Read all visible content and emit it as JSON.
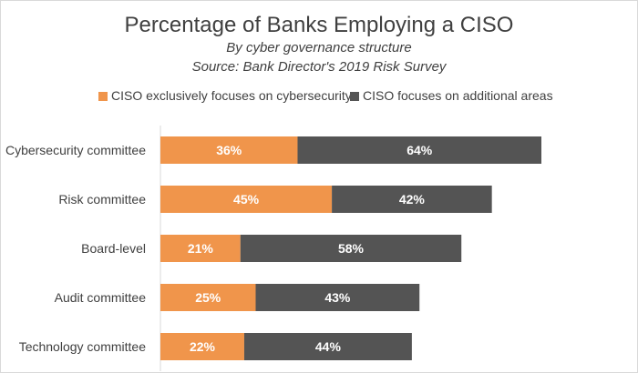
{
  "chart_data": {
    "type": "bar",
    "orientation": "horizontal",
    "stacked": true,
    "title": "Percentage of Banks Employing a CISO",
    "subtitles": [
      "By cyber governance structure",
      "Source: Bank Director's 2019 Risk Survey"
    ],
    "categories": [
      "Cybersecurity committee",
      "Risk committee",
      "Board-level",
      "Audit committee",
      "Technology committee"
    ],
    "series": [
      {
        "name": "CISO exclusively focuses on cybersecurity",
        "color": "#f0954b",
        "values": [
          36,
          45,
          21,
          25,
          22
        ],
        "labels": [
          "36%",
          "45%",
          "21%",
          "25%",
          "22%"
        ]
      },
      {
        "name": "CISO focuses on additional areas",
        "color": "#545454",
        "values": [
          64,
          42,
          58,
          43,
          44
        ],
        "labels": [
          "64%",
          "42%",
          "58%",
          "43%",
          "44%"
        ]
      }
    ],
    "xlim": [
      0,
      100
    ],
    "grid": false,
    "axis_line": "left",
    "legend": "top"
  }
}
